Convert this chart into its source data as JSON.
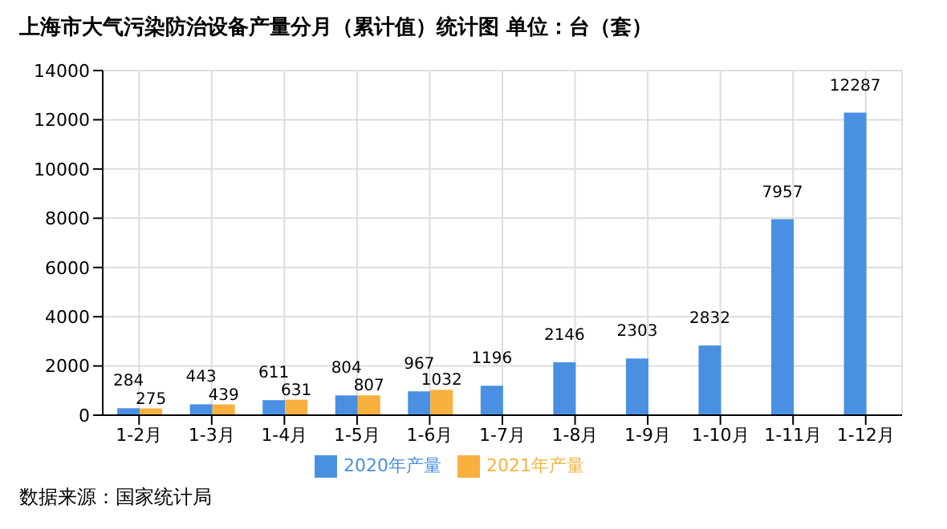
{
  "chart_data": {
    "type": "bar",
    "title": "上海市大气污染防治设备产量分月（累计值）统计图 单位：台（套）",
    "categories": [
      "1-2月",
      "1-3月",
      "1-4月",
      "1-5月",
      "1-6月",
      "1-7月",
      "1-8月",
      "1-9月",
      "1-10月",
      "1-11月",
      "1-12月"
    ],
    "series": [
      {
        "name": "2020年产量",
        "color": "#4a90e2",
        "values": [
          284,
          443,
          611,
          804,
          967,
          1196,
          2146,
          2303,
          2832,
          7957,
          12287
        ]
      },
      {
        "name": "2021年产量",
        "color": "#f8b03e",
        "values": [
          275,
          439,
          631,
          807,
          1032,
          null,
          null,
          null,
          null,
          null,
          null
        ]
      }
    ],
    "ylim": [
      0,
      14000
    ],
    "yticks": [
      0,
      2000,
      4000,
      6000,
      8000,
      10000,
      12000,
      14000
    ],
    "grid": true,
    "legend": "bottom",
    "data_labels": true,
    "annotations": [
      "数据来源：国家统计局"
    ]
  }
}
